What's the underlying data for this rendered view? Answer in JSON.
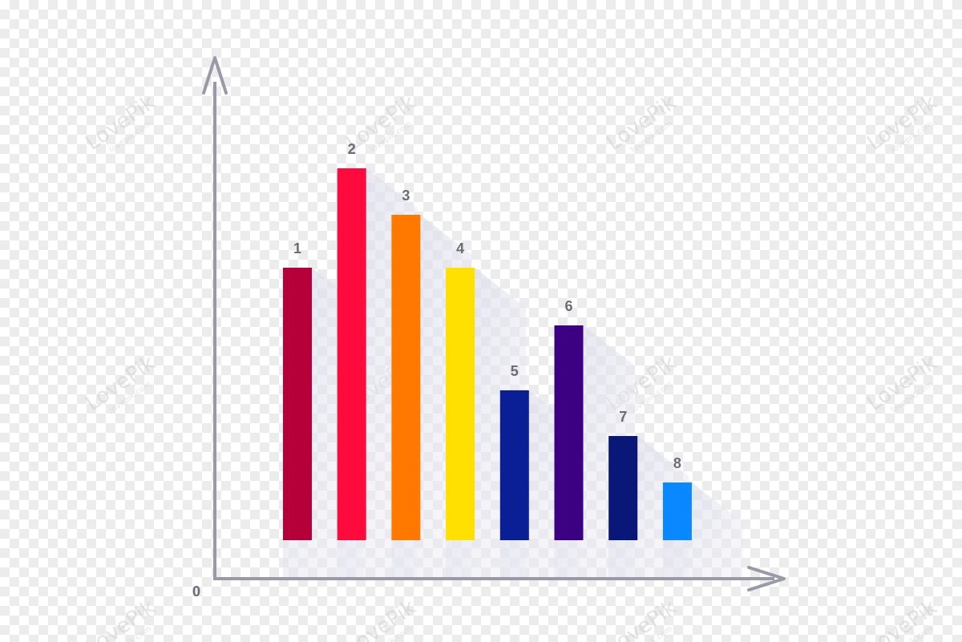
{
  "chart_data": {
    "type": "bar",
    "categories": [
      "1",
      "2",
      "3",
      "4",
      "5",
      "6",
      "7",
      "8"
    ],
    "values": [
      340,
      464,
      406,
      340,
      187,
      268,
      130,
      72
    ],
    "colors": [
      "#b5003a",
      "#ff0a3c",
      "#ff7800",
      "#ffe000",
      "#0a1f96",
      "#3c0082",
      "#081778",
      "#0a88ff"
    ],
    "origin_label": "0",
    "axis_color": "#9a99a8",
    "ylim": [
      0,
      600
    ],
    "grid": false,
    "legend": "none"
  },
  "watermark": {
    "brand": "LovePik",
    "domain": "lovepik.com"
  }
}
